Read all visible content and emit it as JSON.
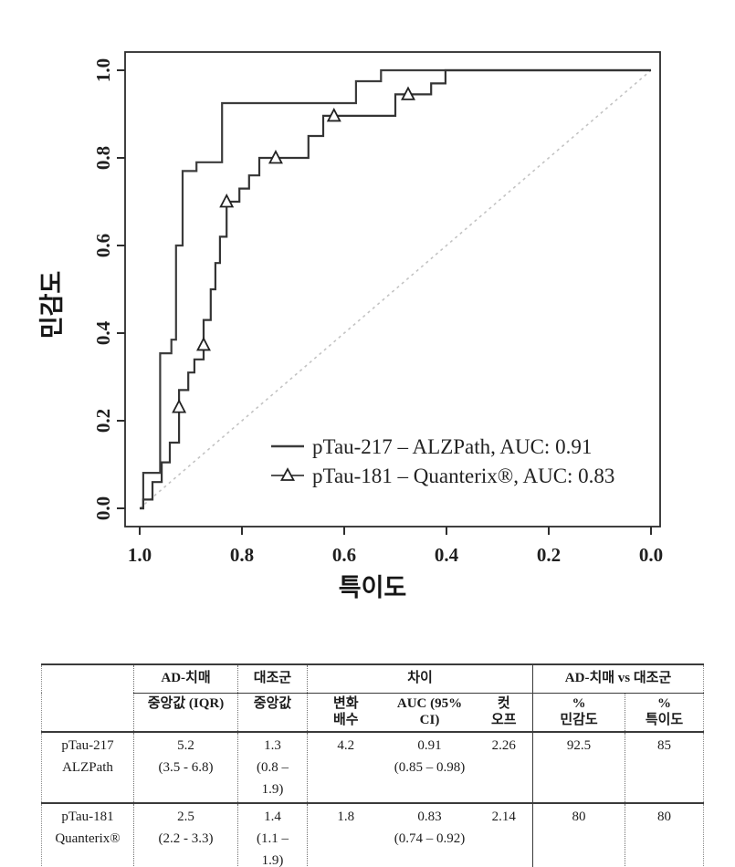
{
  "chart_data": {
    "type": "line",
    "subtype": "roc-step-curves",
    "title": "",
    "xlabel": "특이도",
    "ylabel": "민감도",
    "x_axis": {
      "ticks": [
        "1.0",
        "0.8",
        "0.6",
        "0.4",
        "0.2",
        "0.0"
      ],
      "range": [
        1.0,
        0.0
      ],
      "reversed": true
    },
    "y_axis": {
      "ticks": [
        "0.0",
        "0.2",
        "0.4",
        "0.6",
        "0.8",
        "1.0"
      ],
      "range": [
        0.0,
        1.0
      ]
    },
    "grid": false,
    "legend_position": "inside-lower-right",
    "curve_color": "#3c3c3c",
    "reference_line": {
      "from": [
        1.0,
        0.0
      ],
      "to": [
        0.0,
        1.0
      ],
      "style": "dashed",
      "color": "#c3c3c3"
    },
    "series": [
      {
        "name": "pTau-217 – ALZPath, AUC: 0.91",
        "auc": 0.91,
        "marker": "none",
        "color": "#3c3c3c",
        "step_points": [
          [
            1.0,
            0.0
          ],
          [
            0.993,
            0.081
          ],
          [
            0.96,
            0.354
          ],
          [
            0.938,
            0.385
          ],
          [
            0.929,
            0.6
          ],
          [
            0.916,
            0.77
          ],
          [
            0.889,
            0.79
          ],
          [
            0.839,
            0.925
          ],
          [
            0.577,
            0.975
          ],
          [
            0.528,
            1.0
          ],
          [
            0.0,
            1.0
          ]
        ]
      },
      {
        "name": "pTau-181 – Quanterix®, AUC: 0.83",
        "auc": 0.83,
        "marker": "triangle",
        "color": "#343434",
        "step_points": [
          [
            1.0,
            0.0
          ],
          [
            0.993,
            0.02
          ],
          [
            0.975,
            0.06
          ],
          [
            0.957,
            0.105
          ],
          [
            0.941,
            0.15
          ],
          [
            0.923,
            0.27
          ],
          [
            0.905,
            0.31
          ],
          [
            0.893,
            0.34
          ],
          [
            0.875,
            0.43
          ],
          [
            0.861,
            0.5
          ],
          [
            0.852,
            0.56
          ],
          [
            0.843,
            0.62
          ],
          [
            0.83,
            0.7
          ],
          [
            0.805,
            0.73
          ],
          [
            0.786,
            0.76
          ],
          [
            0.766,
            0.8
          ],
          [
            0.67,
            0.85
          ],
          [
            0.641,
            0.896
          ],
          [
            0.5,
            0.945
          ],
          [
            0.43,
            0.97
          ],
          [
            0.402,
            1.0
          ],
          [
            0.0,
            1.0
          ]
        ],
        "marker_points": [
          [
            0.923,
            0.231
          ],
          [
            0.875,
            0.373
          ],
          [
            0.83,
            0.7
          ],
          [
            0.734,
            0.8
          ],
          [
            0.62,
            0.896
          ],
          [
            0.475,
            0.945
          ]
        ]
      }
    ]
  },
  "table": {
    "header": {
      "group": [
        "",
        "AD-치매",
        "대조군",
        "차이",
        "AD-치매 vs 대조군"
      ],
      "sub": [
        "",
        "중앙값 (IQR)",
        "중앙값",
        "변화\n배수",
        "AUC (95% CI)",
        "컷\n오프",
        "%\n민감도",
        "%\n특이도"
      ]
    },
    "rows": [
      {
        "label": "pTau-217\nALZPath",
        "cells": [
          "5.2\n(3.5 - 6.8)",
          "1.3\n(0.8 –\n1.9)",
          "4.2",
          "0.91\n(0.85 – 0.98)",
          "2.26",
          "92.5",
          "85"
        ]
      },
      {
        "label": "pTau-181\nQuanterix®",
        "cells": [
          "2.5\n(2.2 - 3.3)",
          "1.4\n(1.1 –\n1.9)",
          "1.8",
          "0.83\n(0.74 – 0.92)",
          "2.14",
          "80",
          "80"
        ]
      }
    ]
  }
}
